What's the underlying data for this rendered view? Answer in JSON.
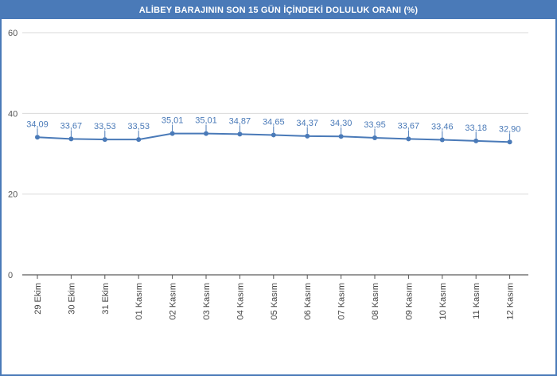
{
  "chart_data": {
    "type": "line",
    "title": "ALİBEY BARAJININ SON 15 GÜN İÇİNDEKİ DOLULUK ORANI (%)",
    "categories": [
      "29 Ekim",
      "30 Ekim",
      "31 Ekim",
      "01 Kasım",
      "02 Kasım",
      "03 Kasım",
      "04 Kasım",
      "05 Kasım",
      "06 Kasım",
      "07 Kasım",
      "08 Kasım",
      "09 Kasım",
      "10 Kasım",
      "11 Kasım",
      "12 Kasım"
    ],
    "series": [
      {
        "values": [
          34.09,
          33.67,
          33.53,
          33.53,
          35.01,
          35.01,
          34.87,
          34.65,
          34.37,
          34.3,
          33.95,
          33.67,
          33.46,
          33.18,
          32.9
        ],
        "labels": [
          "34,09",
          "33,67",
          "33,53",
          "33,53",
          "35,01",
          "35,01",
          "34,87",
          "34,65",
          "34,37",
          "34,30",
          "33,95",
          "33,67",
          "33,46",
          "33,18",
          "32,90"
        ]
      }
    ],
    "ylim": [
      0,
      60
    ],
    "yticks": [
      "0",
      "20",
      "40",
      "60"
    ],
    "ytick_values": [
      0,
      20,
      40,
      60
    ],
    "grid": true,
    "colors": {
      "line": "#4a7ab8",
      "grid": "#d9d9d9",
      "header": "#4a7ab8"
    }
  }
}
